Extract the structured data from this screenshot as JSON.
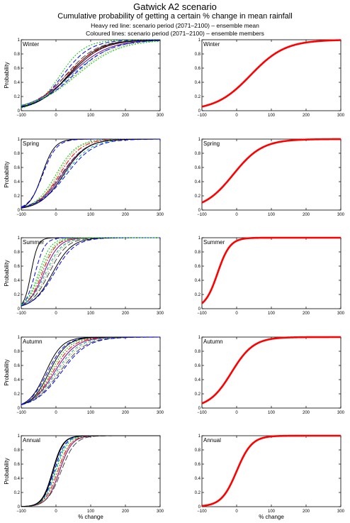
{
  "header": {
    "title": "Gatwick A2 scenario",
    "subtitle": "Cumulative probability of getting a certain % change in mean rainfall",
    "legend_line1": "Heavy red line: scenario period (2071–2100) – ensemble mean",
    "legend_line2": "Coloured lines: scenario period (2071–2100) – ensemble members"
  },
  "colors": {
    "ensemble_mean": "#ff0000",
    "members": [
      "#000000",
      "#0000ff",
      "#00cc00",
      "#ff0000",
      "#800080",
      "#00aaaa",
      "#888800",
      "#444444"
    ]
  },
  "chart_data": [
    {
      "type": "line",
      "panel": "members",
      "season": "Winter",
      "ylabel": "Probability",
      "xlabel": "",
      "xlim": [
        -100,
        300
      ],
      "ylim": [
        0,
        1
      ],
      "xticks": [
        "−100",
        "0",
        "100",
        "200",
        "300"
      ],
      "yticks": [
        "0",
        "0.2",
        "0.4",
        "0.6",
        "0.8",
        "1"
      ],
      "member_curves": [
        [
          35,
          45
        ],
        [
          20,
          40
        ],
        [
          12,
          35
        ],
        [
          30,
          50
        ],
        [
          40,
          55
        ],
        [
          45,
          58
        ],
        [
          55,
          60
        ],
        [
          28,
          45
        ],
        [
          38,
          48
        ],
        [
          50,
          55
        ],
        [
          60,
          62
        ]
      ]
    },
    {
      "type": "line",
      "panel": "mean",
      "season": "Winter",
      "ylabel": "",
      "xlabel": "",
      "xlim": [
        -100,
        300
      ],
      "ylim": [
        0,
        1
      ],
      "xticks": [
        "−100",
        "0",
        "100",
        "200",
        "300"
      ],
      "yticks": [
        "0",
        "0.2",
        "0.4",
        "0.6",
        "0.8",
        "1"
      ],
      "mean_curve": [
        40,
        50
      ]
    },
    {
      "type": "line",
      "panel": "members",
      "season": "Spring",
      "ylabel": "Probability",
      "xlabel": "",
      "xlim": [
        -100,
        300
      ],
      "ylim": [
        0,
        1
      ],
      "xticks": [
        "−100",
        "0",
        "100",
        "200",
        "300"
      ],
      "yticks": [
        "0",
        "0.2",
        "0.4",
        "0.6",
        "0.8",
        "1"
      ],
      "member_curves": [
        [
          -40,
          18
        ],
        [
          -38,
          20
        ],
        [
          0,
          30
        ],
        [
          10,
          32
        ],
        [
          18,
          35
        ],
        [
          25,
          38
        ],
        [
          5,
          30
        ],
        [
          15,
          36
        ],
        [
          22,
          34
        ],
        [
          30,
          40
        ]
      ]
    },
    {
      "type": "line",
      "panel": "mean",
      "season": "Spring",
      "ylabel": "",
      "xlabel": "",
      "xlim": [
        -100,
        300
      ],
      "ylim": [
        0,
        1
      ],
      "xticks": [
        "−100",
        "0",
        "100",
        "200",
        "300"
      ],
      "yticks": [
        "0",
        "0.2",
        "0.4",
        "0.6",
        "0.8",
        "1"
      ],
      "mean_curve": [
        -10,
        42
      ]
    },
    {
      "type": "line",
      "panel": "members",
      "season": "Summer",
      "ylabel": "Probability",
      "xlabel": "",
      "xlim": [
        -100,
        300
      ],
      "ylim": [
        0,
        1
      ],
      "xticks": [
        "−100",
        "0",
        "100",
        "200",
        "300"
      ],
      "yticks": [
        "0",
        "0.2",
        "0.4",
        "0.6",
        "0.8",
        "1"
      ],
      "member_curves": [
        [
          -72,
          10
        ],
        [
          -60,
          14
        ],
        [
          -50,
          18
        ],
        [
          -40,
          20
        ],
        [
          -35,
          22
        ],
        [
          -30,
          24
        ],
        [
          -25,
          24
        ],
        [
          -20,
          26
        ],
        [
          -10,
          28
        ],
        [
          -5,
          30
        ],
        [
          -45,
          20
        ]
      ]
    },
    {
      "type": "line",
      "panel": "mean",
      "season": "Summer",
      "ylabel": "",
      "xlabel": "",
      "xlim": [
        -100,
        300
      ],
      "ylim": [
        0,
        1
      ],
      "xticks": [
        "−100",
        "0",
        "100",
        "200",
        "300"
      ],
      "yticks": [
        "0",
        "0.2",
        "0.4",
        "0.6",
        "0.8",
        "1"
      ],
      "mean_curve": [
        -55,
        18
      ]
    },
    {
      "type": "line",
      "panel": "members",
      "season": "Autumn",
      "ylabel": "Probability",
      "xlabel": "",
      "xlim": [
        -100,
        300
      ],
      "ylim": [
        0,
        1
      ],
      "xticks": [
        "−100",
        "0",
        "100",
        "200",
        "300"
      ],
      "yticks": [
        "0",
        "0.2",
        "0.4",
        "0.6",
        "0.8",
        "1"
      ],
      "member_curves": [
        [
          -30,
          24
        ],
        [
          -25,
          26
        ],
        [
          -15,
          28
        ],
        [
          -10,
          30
        ],
        [
          -5,
          32
        ],
        [
          0,
          34
        ],
        [
          5,
          35
        ],
        [
          10,
          37
        ],
        [
          -20,
          26
        ],
        [
          15,
          38
        ]
      ]
    },
    {
      "type": "line",
      "panel": "mean",
      "season": "Autumn",
      "ylabel": "",
      "xlabel": "",
      "xlim": [
        -100,
        300
      ],
      "ylim": [
        0,
        1
      ],
      "xticks": [
        "−100",
        "0",
        "100",
        "200",
        "300"
      ],
      "yticks": [
        "0",
        "0.2",
        "0.4",
        "0.6",
        "0.8",
        "1"
      ],
      "mean_curve": [
        -15,
        32
      ]
    },
    {
      "type": "line",
      "panel": "members",
      "season": "Annual",
      "ylabel": "Probability",
      "xlabel": "% change",
      "xlim": [
        -100,
        300
      ],
      "ylim": [
        0,
        1
      ],
      "xticks": [
        "−100",
        "0",
        "100",
        "200",
        "300"
      ],
      "yticks": [
        "0",
        "0.2",
        "0.4",
        "0.6",
        "0.8",
        "1"
      ],
      "member_curves": [
        [
          -10,
          15
        ],
        [
          -5,
          16
        ],
        [
          0,
          17
        ],
        [
          5,
          18
        ],
        [
          10,
          18
        ],
        [
          -2,
          16
        ],
        [
          8,
          17
        ],
        [
          15,
          20
        ],
        [
          -8,
          15
        ]
      ]
    },
    {
      "type": "line",
      "panel": "mean",
      "season": "Annual",
      "ylabel": "",
      "xlabel": "% change",
      "xlim": [
        -100,
        300
      ],
      "ylim": [
        0,
        1
      ],
      "xticks": [
        "−100",
        "0",
        "100",
        "200",
        "300"
      ],
      "yticks": [
        "0",
        "0.2",
        "0.4",
        "0.6",
        "0.8",
        "1"
      ],
      "mean_curve": [
        0,
        22
      ]
    }
  ]
}
